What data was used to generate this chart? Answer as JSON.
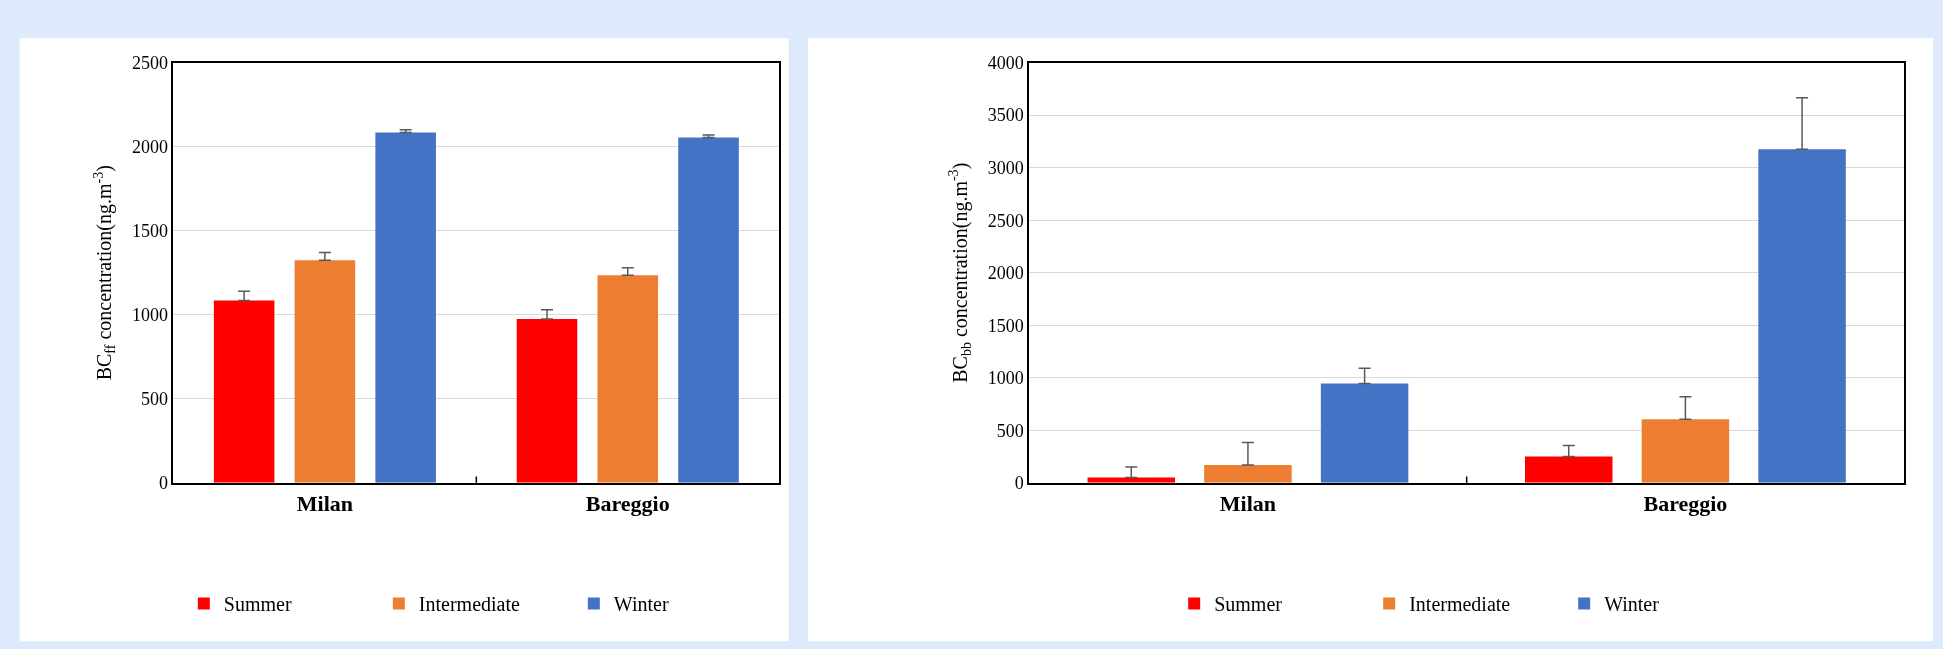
{
  "chart_data": [
    {
      "type": "bar",
      "ylabel": "BC$_{ff}$ concentration(ng.m$^{-3}$)",
      "categories": [
        "Milan",
        "Bareggio"
      ],
      "series": [
        {
          "name": "Summer",
          "color": "#ff0000",
          "values": [
            1085,
            975
          ],
          "errors": [
            [
              1085,
              1140
            ],
            [
              975,
              1030
            ]
          ]
        },
        {
          "name": "Intermediate",
          "color": "#ed7d31",
          "values": [
            1325,
            1235
          ],
          "errors": [
            [
              1325,
              1370
            ],
            [
              1235,
              1280
            ]
          ]
        },
        {
          "name": "Winter",
          "color": "#4472c4",
          "values": [
            2085,
            2055
          ],
          "errors": [
            [
              2085,
              2100
            ],
            [
              2055,
              2070
            ]
          ]
        }
      ],
      "ylim": [
        0,
        2500
      ],
      "yticks": [
        0,
        500,
        1000,
        1500,
        2000,
        2500
      ],
      "grid": "y",
      "legend": "bottom"
    },
    {
      "type": "bar",
      "ylabel": "BC$_{bb}$ concentration(ng.m$^{-3}$)",
      "categories": [
        "Milan",
        "Bareggio"
      ],
      "series": [
        {
          "name": "Summer",
          "color": "#ff0000",
          "values": [
            50,
            250
          ],
          "errors": [
            [
              50,
              150
            ],
            [
              250,
              355
            ]
          ]
        },
        {
          "name": "Intermediate",
          "color": "#ed7d31",
          "values": [
            170,
            605
          ],
          "errors": [
            [
              170,
              385
            ],
            [
              605,
              820
            ]
          ]
        },
        {
          "name": "Winter",
          "color": "#4472c4",
          "values": [
            945,
            3175
          ],
          "errors": [
            [
              945,
              1090
            ],
            [
              3175,
              3665
            ]
          ]
        }
      ],
      "ylim": [
        0,
        4000
      ],
      "yticks": [
        0,
        500,
        1000,
        1500,
        2000,
        2500,
        3000,
        3500,
        4000
      ],
      "grid": "y",
      "legend": "bottom"
    }
  ]
}
